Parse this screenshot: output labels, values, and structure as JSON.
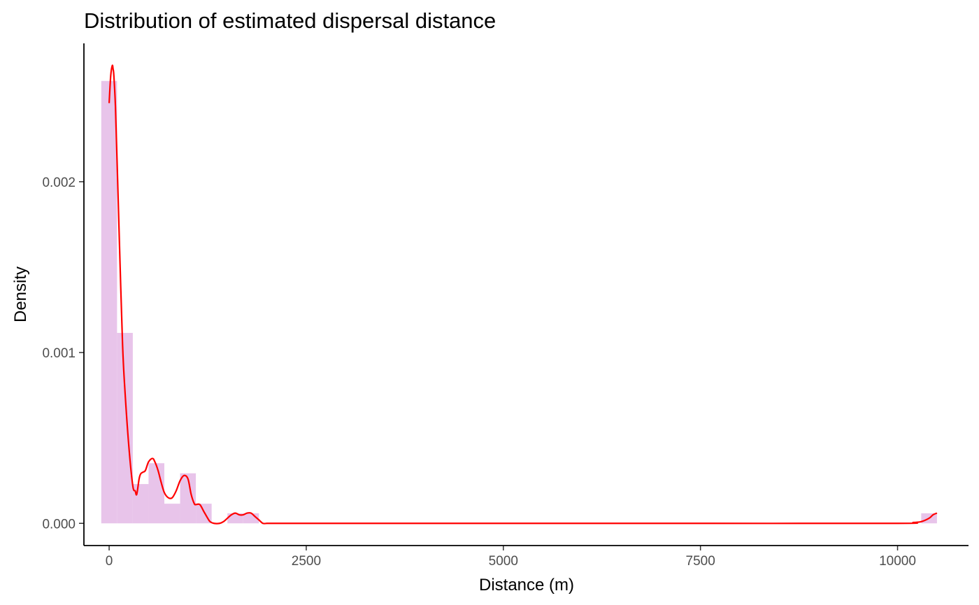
{
  "chart_data": {
    "type": "histogram",
    "title": "Distribution of estimated dispersal distance",
    "xlabel": "Distance (m)",
    "ylabel": "Density",
    "xlim": [
      -320,
      10900
    ],
    "ylim": [
      -0.00013,
      0.00281
    ],
    "x_ticks": [
      {
        "value": 0,
        "label": "0"
      },
      {
        "value": 2500,
        "label": "2500"
      },
      {
        "value": 5000,
        "label": "5000"
      },
      {
        "value": 7500,
        "label": "7500"
      },
      {
        "value": 10000,
        "label": "10000"
      }
    ],
    "y_ticks": [
      {
        "value": 0,
        "label": "0.000"
      },
      {
        "value": 0.001,
        "label": "0.001"
      },
      {
        "value": 0.002,
        "label": "0.002"
      }
    ],
    "bins": [
      {
        "x0": -100,
        "x1": 100,
        "density": 0.00259
      },
      {
        "x0": 100,
        "x1": 300,
        "density": 0.001115
      },
      {
        "x0": 300,
        "x1": 500,
        "density": 0.00023
      },
      {
        "x0": 500,
        "x1": 700,
        "density": 0.000352
      },
      {
        "x0": 700,
        "x1": 900,
        "density": 0.000115
      },
      {
        "x0": 900,
        "x1": 1100,
        "density": 0.000293
      },
      {
        "x0": 1100,
        "x1": 1300,
        "density": 0.000115
      },
      {
        "x0": 1300,
        "x1": 1500,
        "density": 0.0
      },
      {
        "x0": 1500,
        "x1": 1700,
        "density": 5.9e-05
      },
      {
        "x0": 1700,
        "x1": 1900,
        "density": 5.9e-05
      },
      {
        "x0": 10300,
        "x1": 10500,
        "density": 5.9e-05
      }
    ],
    "density_curve": {
      "x": [
        0,
        20,
        40,
        50,
        60,
        80,
        100,
        130,
        170,
        200,
        250,
        300,
        330,
        350,
        380,
        400,
        430,
        460,
        500,
        550,
        580,
        620,
        660,
        700,
        750,
        800,
        850,
        900,
        950,
        1000,
        1040,
        1080,
        1100,
        1150,
        1200,
        1250,
        1280,
        1330,
        1400,
        1450,
        1500,
        1550,
        1600,
        1650,
        1700,
        1750,
        1800,
        1850,
        1900,
        1950,
        2000,
        2050,
        2100,
        2300,
        3000,
        5000,
        7500,
        10000,
        10200,
        10300,
        10400,
        10450,
        10500
      ],
      "y": [
        0.00246,
        0.00262,
        0.00268,
        0.00266,
        0.00262,
        0.00244,
        0.00213,
        0.00165,
        0.00105,
        0.00078,
        0.00045,
        0.00022,
        0.00019,
        0.00017,
        0.00026,
        0.00029,
        0.0003,
        0.00031,
        0.00036,
        0.00038,
        0.00036,
        0.00031,
        0.00024,
        0.00018,
        0.00015,
        0.00015,
        0.00019,
        0.00025,
        0.00028,
        0.00026,
        0.00017,
        0.000115,
        0.00011,
        0.00011,
        7e-05,
        3e-05,
        1e-05,
        0.0,
        0.0,
        1e-05,
        3e-05,
        5e-05,
        6e-05,
        5e-05,
        5e-05,
        6e-05,
        6e-05,
        4e-05,
        2e-05,
        0.0,
        0.0,
        0.0,
        0.0,
        0.0,
        0.0,
        0.0,
        0.0,
        0.0,
        5e-06,
        1e-05,
        3e-05,
        5e-05,
        6e-05
      ]
    },
    "colors": {
      "bars": "#e8c4ea",
      "curve": "#ff0000",
      "axis": "#000000",
      "tick_text": "#4d4d4d"
    },
    "grid": false,
    "legend": "none"
  }
}
